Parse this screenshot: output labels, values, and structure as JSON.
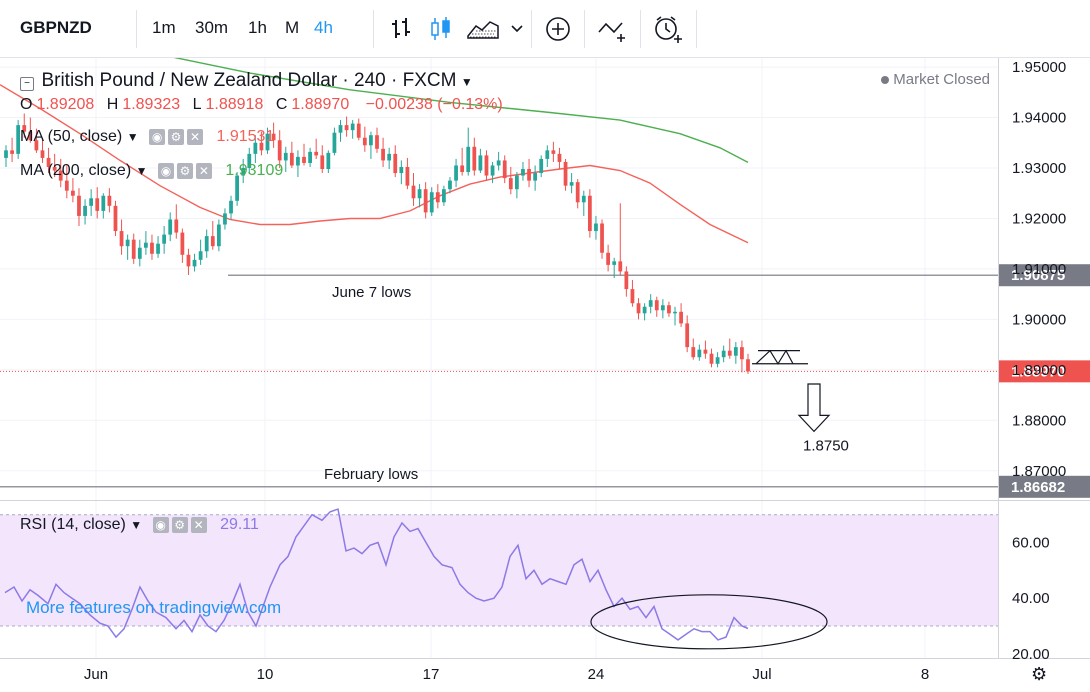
{
  "toolbar": {
    "symbol": "GBPNZD",
    "intervals": [
      "1m",
      "30m",
      "1h",
      "M",
      "4h"
    ],
    "active_interval": "4h",
    "icons": [
      "bar-chart-icon",
      "candles-icon",
      "area-chart-icon",
      "chevron-down-icon",
      "plus-circle-icon",
      "indicators-icon",
      "alert-clock-icon"
    ]
  },
  "header": {
    "title": "British Pound / New Zealand Dollar · 240 · FXCM",
    "status": "Market Closed",
    "ohlc": {
      "o_label": "O",
      "o": "1.89208",
      "h_label": "H",
      "h": "1.89323",
      "l_label": "L",
      "l": "1.88918",
      "c_label": "C",
      "c": "1.88970",
      "change": "−0.00238 (−0.13%)"
    }
  },
  "indicators": {
    "ma50": {
      "label": "MA (50, close)",
      "value": "1.91531"
    },
    "ma200": {
      "label": "MA (200, close)",
      "value": "1.93109"
    },
    "rsi": {
      "label": "RSI (14, close)",
      "value": "29.11"
    }
  },
  "promo": "More features on tradingview.com",
  "colors": {
    "up": "#26a69a",
    "down": "#ef5350",
    "ma50": "#f4625a",
    "ma200": "#4caf50",
    "rsi_line": "#8c7ae6",
    "rsi_band": "#f3e5fc",
    "accent": "#2196f3"
  },
  "chart_data": {
    "type": "candlestick",
    "price_axis": {
      "ticks": [
        "1.95000",
        "1.94000",
        "1.93000",
        "1.92000",
        "1.91000",
        "1.90000",
        "1.89000",
        "1.88000",
        "1.87000"
      ],
      "ylim": [
        1.8646,
        1.9518
      ]
    },
    "time_axis": {
      "ticks": [
        "Jun",
        "10",
        "17",
        "24",
        "Jul",
        "8"
      ]
    },
    "levels": [
      {
        "label": "June 7 lows",
        "value": 1.90875,
        "tag": "1.90875"
      },
      {
        "label": "February lows",
        "value": 1.86682,
        "tag": "1.86682"
      }
    ],
    "last_price": {
      "value": 1.8897,
      "tag": "1.88970"
    },
    "target": {
      "label": "1.8750",
      "value": 1.875
    },
    "rsi_axis": {
      "ticks": [
        "60.00",
        "40.00",
        "20.00"
      ],
      "ylim": [
        18.5,
        74.2
      ],
      "band": [
        30,
        70
      ]
    },
    "candles": [
      [
        1.932,
        1.9345,
        1.9302,
        1.9335
      ],
      [
        1.9335,
        1.936,
        1.9312,
        1.9328
      ],
      [
        1.9328,
        1.9395,
        1.9318,
        1.9385
      ],
      [
        1.9385,
        1.9408,
        1.936,
        1.9372
      ],
      [
        1.9372,
        1.94,
        1.935,
        1.9355
      ],
      [
        1.9355,
        1.9378,
        1.933,
        1.9335
      ],
      [
        1.9335,
        1.936,
        1.931,
        1.932
      ],
      [
        1.932,
        1.934,
        1.929,
        1.9302
      ],
      [
        1.9302,
        1.9328,
        1.9282,
        1.9295
      ],
      [
        1.9295,
        1.9318,
        1.9262,
        1.9275
      ],
      [
        1.9275,
        1.9305,
        1.924,
        1.9255
      ],
      [
        1.9255,
        1.928,
        1.9232,
        1.9245
      ],
      [
        1.9245,
        1.926,
        1.9185,
        1.9205
      ],
      [
        1.9205,
        1.9238,
        1.9188,
        1.9225
      ],
      [
        1.9225,
        1.9258,
        1.9205,
        1.924
      ],
      [
        1.924,
        1.9262,
        1.92,
        1.9215
      ],
      [
        1.9215,
        1.925,
        1.92,
        1.9245
      ],
      [
        1.9245,
        1.926,
        1.9212,
        1.9225
      ],
      [
        1.9225,
        1.9235,
        1.9165,
        1.9175
      ],
      [
        1.9175,
        1.9198,
        1.9128,
        1.9145
      ],
      [
        1.9145,
        1.9168,
        1.9118,
        1.9158
      ],
      [
        1.9158,
        1.917,
        1.911,
        1.912
      ],
      [
        1.912,
        1.9158,
        1.9105,
        1.9142
      ],
      [
        1.9142,
        1.9175,
        1.9128,
        1.9152
      ],
      [
        1.9152,
        1.9168,
        1.9118,
        1.913
      ],
      [
        1.913,
        1.9165,
        1.9122,
        1.915
      ],
      [
        1.915,
        1.9185,
        1.913,
        1.9168
      ],
      [
        1.9168,
        1.9212,
        1.9155,
        1.9198
      ],
      [
        1.9198,
        1.9228,
        1.916,
        1.9172
      ],
      [
        1.9172,
        1.918,
        1.9112,
        1.9128
      ],
      [
        1.9128,
        1.914,
        1.9088,
        1.9105
      ],
      [
        1.9105,
        1.913,
        1.9095,
        1.9118
      ],
      [
        1.9118,
        1.9158,
        1.9108,
        1.9135
      ],
      [
        1.9135,
        1.9178,
        1.9122,
        1.9165
      ],
      [
        1.9165,
        1.9195,
        1.9138,
        1.9145
      ],
      [
        1.9145,
        1.9198,
        1.9135,
        1.9188
      ],
      [
        1.9188,
        1.922,
        1.9178,
        1.921
      ],
      [
        1.921,
        1.9245,
        1.9198,
        1.9235
      ],
      [
        1.9235,
        1.9292,
        1.9225,
        1.9285
      ],
      [
        1.9285,
        1.9318,
        1.927,
        1.93
      ],
      [
        1.93,
        1.934,
        1.929,
        1.9328
      ],
      [
        1.9328,
        1.9365,
        1.931,
        1.935
      ],
      [
        1.935,
        1.9372,
        1.9325,
        1.9335
      ],
      [
        1.9335,
        1.938,
        1.9328,
        1.9368
      ],
      [
        1.9368,
        1.939,
        1.934,
        1.9355
      ],
      [
        1.9355,
        1.9375,
        1.93,
        1.9315
      ],
      [
        1.9315,
        1.9342,
        1.9292,
        1.933
      ],
      [
        1.933,
        1.9352,
        1.93,
        1.9305
      ],
      [
        1.9305,
        1.9335,
        1.9282,
        1.9322
      ],
      [
        1.9322,
        1.9348,
        1.9305,
        1.931
      ],
      [
        1.931,
        1.934,
        1.9302,
        1.9332
      ],
      [
        1.9332,
        1.9358,
        1.9318,
        1.9325
      ],
      [
        1.9325,
        1.9345,
        1.929,
        1.9298
      ],
      [
        1.9298,
        1.9335,
        1.929,
        1.933
      ],
      [
        1.933,
        1.938,
        1.9325,
        1.937
      ],
      [
        1.937,
        1.9395,
        1.9352,
        1.9385
      ],
      [
        1.9385,
        1.9402,
        1.9362,
        1.9375
      ],
      [
        1.9375,
        1.9395,
        1.9358,
        1.9388
      ],
      [
        1.9388,
        1.9398,
        1.9355,
        1.936
      ],
      [
        1.936,
        1.9382,
        1.9332,
        1.9345
      ],
      [
        1.9345,
        1.9372,
        1.9318,
        1.9365
      ],
      [
        1.9365,
        1.938,
        1.933,
        1.9338
      ],
      [
        1.9338,
        1.936,
        1.9302,
        1.9315
      ],
      [
        1.9315,
        1.934,
        1.9298,
        1.9328
      ],
      [
        1.9328,
        1.9345,
        1.9282,
        1.929
      ],
      [
        1.929,
        1.9315,
        1.9268,
        1.9302
      ],
      [
        1.9302,
        1.932,
        1.9258,
        1.9265
      ],
      [
        1.9265,
        1.929,
        1.9225,
        1.924
      ],
      [
        1.924,
        1.9268,
        1.9222,
        1.9258
      ],
      [
        1.9258,
        1.9272,
        1.92,
        1.9212
      ],
      [
        1.9212,
        1.9262,
        1.9205,
        1.9252
      ],
      [
        1.9252,
        1.9268,
        1.922,
        1.9232
      ],
      [
        1.9232,
        1.9265,
        1.9225,
        1.9258
      ],
      [
        1.9258,
        1.9282,
        1.925,
        1.9275
      ],
      [
        1.9275,
        1.9318,
        1.9262,
        1.9305
      ],
      [
        1.9305,
        1.934,
        1.9285,
        1.9292
      ],
      [
        1.9292,
        1.938,
        1.9285,
        1.9342
      ],
      [
        1.9342,
        1.936,
        1.9285,
        1.9295
      ],
      [
        1.9295,
        1.9338,
        1.929,
        1.9325
      ],
      [
        1.9325,
        1.9335,
        1.9275,
        1.9285
      ],
      [
        1.9285,
        1.9312,
        1.927,
        1.9305
      ],
      [
        1.9305,
        1.9332,
        1.9295,
        1.9315
      ],
      [
        1.9315,
        1.9325,
        1.927,
        1.928
      ],
      [
        1.928,
        1.9302,
        1.9248,
        1.9258
      ],
      [
        1.9258,
        1.9292,
        1.924,
        1.9285
      ],
      [
        1.9285,
        1.9312,
        1.9275,
        1.9298
      ],
      [
        1.9298,
        1.9318,
        1.9262,
        1.9275
      ],
      [
        1.9275,
        1.9305,
        1.9255,
        1.929
      ],
      [
        1.929,
        1.9325,
        1.9282,
        1.9318
      ],
      [
        1.9318,
        1.9345,
        1.9302,
        1.9335
      ],
      [
        1.9335,
        1.9352,
        1.9312,
        1.9328
      ],
      [
        1.9328,
        1.934,
        1.9298,
        1.9312
      ],
      [
        1.9312,
        1.9318,
        1.9255,
        1.9265
      ],
      [
        1.9265,
        1.929,
        1.925,
        1.9272
      ],
      [
        1.9272,
        1.9278,
        1.922,
        1.9232
      ],
      [
        1.9232,
        1.9255,
        1.9205,
        1.9245
      ],
      [
        1.9245,
        1.9258,
        1.9162,
        1.9175
      ],
      [
        1.9175,
        1.9205,
        1.9158,
        1.919
      ],
      [
        1.919,
        1.9198,
        1.912,
        1.9132
      ],
      [
        1.9132,
        1.9148,
        1.9095,
        1.9108
      ],
      [
        1.9108,
        1.9122,
        1.9082,
        1.9115
      ],
      [
        1.9115,
        1.923,
        1.9088,
        1.9095
      ],
      [
        1.9095,
        1.9105,
        1.9045,
        1.906
      ],
      [
        1.906,
        1.9078,
        1.9025,
        1.9032
      ],
      [
        1.9032,
        1.9042,
        1.9,
        1.9012
      ],
      [
        1.9012,
        1.9032,
        1.8998,
        1.9025
      ],
      [
        1.9025,
        1.905,
        1.9012,
        1.9038
      ],
      [
        1.9038,
        1.9045,
        1.9005,
        1.9018
      ],
      [
        1.9018,
        1.904,
        1.9002,
        1.9028
      ],
      [
        1.9028,
        1.9035,
        1.9005,
        1.9012
      ],
      [
        1.9012,
        1.9025,
        1.8988,
        1.9015
      ],
      [
        1.9015,
        1.9032,
        1.8985,
        1.8992
      ],
      [
        1.8992,
        1.9008,
        1.8935,
        1.8945
      ],
      [
        1.8945,
        1.8962,
        1.892,
        1.8925
      ],
      [
        1.8925,
        1.895,
        1.8918,
        1.894
      ],
      [
        1.894,
        1.8958,
        1.8922,
        1.8932
      ],
      [
        1.8932,
        1.8942,
        1.8905,
        1.8912
      ],
      [
        1.8912,
        1.8935,
        1.8905,
        1.8925
      ],
      [
        1.8925,
        1.8948,
        1.8915,
        1.8938
      ],
      [
        1.8938,
        1.8962,
        1.8922,
        1.8928
      ],
      [
        1.8928,
        1.8955,
        1.8912,
        1.8945
      ],
      [
        1.8945,
        1.8958,
        1.8895,
        1.8921
      ],
      [
        1.8921,
        1.8932,
        1.8892,
        1.8897
      ]
    ],
    "ma50": [
      [
        0,
        1.9465
      ],
      [
        40,
        1.9418
      ],
      [
        80,
        1.9368
      ],
      [
        120,
        1.9315
      ],
      [
        160,
        1.9265
      ],
      [
        200,
        1.9222
      ],
      [
        230,
        1.9198
      ],
      [
        260,
        1.9188
      ],
      [
        290,
        1.9188
      ],
      [
        320,
        1.9195
      ],
      [
        350,
        1.92
      ],
      [
        380,
        1.92
      ],
      [
        410,
        1.9215
      ],
      [
        440,
        1.9245
      ],
      [
        470,
        1.9268
      ],
      [
        500,
        1.9282
      ],
      [
        530,
        1.929
      ],
      [
        560,
        1.9298
      ],
      [
        590,
        1.9305
      ],
      [
        620,
        1.9295
      ],
      [
        650,
        1.927
      ],
      [
        680,
        1.9228
      ],
      [
        710,
        1.9188
      ],
      [
        748,
        1.9152
      ]
    ],
    "ma200": [
      [
        160,
        1.9525
      ],
      [
        250,
        1.9488
      ],
      [
        350,
        1.9455
      ],
      [
        450,
        1.943
      ],
      [
        550,
        1.941
      ],
      [
        620,
        1.9395
      ],
      [
        680,
        1.9368
      ],
      [
        720,
        1.934
      ],
      [
        748,
        1.9311
      ]
    ],
    "rsi": [
      [
        5,
        42
      ],
      [
        14,
        44
      ],
      [
        22,
        39
      ],
      [
        30,
        43
      ],
      [
        38,
        41
      ],
      [
        48,
        38
      ],
      [
        56,
        45
      ],
      [
        64,
        42
      ],
      [
        72,
        40
      ],
      [
        80,
        38
      ],
      [
        90,
        34
      ],
      [
        100,
        31
      ],
      [
        108,
        30
      ],
      [
        116,
        26
      ],
      [
        124,
        29
      ],
      [
        132,
        36
      ],
      [
        140,
        44
      ],
      [
        148,
        39
      ],
      [
        156,
        35
      ],
      [
        166,
        33
      ],
      [
        176,
        29
      ],
      [
        184,
        32
      ],
      [
        192,
        28
      ],
      [
        200,
        34
      ],
      [
        208,
        30
      ],
      [
        216,
        28
      ],
      [
        224,
        32
      ],
      [
        232,
        38
      ],
      [
        240,
        45
      ],
      [
        248,
        35
      ],
      [
        256,
        30
      ],
      [
        262,
        36
      ],
      [
        270,
        44
      ],
      [
        280,
        52
      ],
      [
        288,
        55
      ],
      [
        296,
        62
      ],
      [
        304,
        66
      ],
      [
        312,
        70
      ],
      [
        322,
        68
      ],
      [
        330,
        71
      ],
      [
        338,
        72
      ],
      [
        346,
        57
      ],
      [
        354,
        58
      ],
      [
        362,
        56
      ],
      [
        370,
        59
      ],
      [
        378,
        60
      ],
      [
        386,
        52
      ],
      [
        394,
        62
      ],
      [
        402,
        67
      ],
      [
        410,
        64
      ],
      [
        418,
        65
      ],
      [
        426,
        60
      ],
      [
        434,
        55
      ],
      [
        442,
        52
      ],
      [
        452,
        51
      ],
      [
        460,
        45
      ],
      [
        468,
        42
      ],
      [
        476,
        40
      ],
      [
        484,
        39
      ],
      [
        494,
        40
      ],
      [
        502,
        44
      ],
      [
        510,
        55
      ],
      [
        518,
        59
      ],
      [
        526,
        47
      ],
      [
        534,
        50
      ],
      [
        542,
        45
      ],
      [
        550,
        47
      ],
      [
        558,
        46
      ],
      [
        566,
        45
      ],
      [
        574,
        52
      ],
      [
        582,
        54
      ],
      [
        590,
        46
      ],
      [
        598,
        50
      ],
      [
        606,
        43
      ],
      [
        614,
        37
      ],
      [
        622,
        40
      ],
      [
        630,
        36
      ],
      [
        638,
        37
      ],
      [
        646,
        33
      ],
      [
        654,
        37
      ],
      [
        662,
        29
      ],
      [
        670,
        27
      ],
      [
        678,
        25
      ],
      [
        686,
        27
      ],
      [
        694,
        29
      ],
      [
        702,
        28
      ],
      [
        710,
        28
      ],
      [
        718,
        25
      ],
      [
        726,
        26
      ],
      [
        734,
        33
      ],
      [
        742,
        30
      ],
      [
        748,
        29.11
      ]
    ]
  }
}
